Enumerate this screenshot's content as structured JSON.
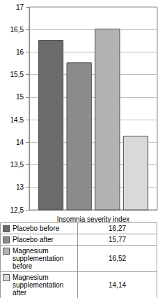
{
  "chart_data": {
    "type": "bar",
    "categories": [
      "Insomnia severity index"
    ],
    "series": [
      {
        "name": "Placebo before",
        "color": "#6b6b6b",
        "values": [
          16.27
        ],
        "value_labels": [
          "16,27"
        ]
      },
      {
        "name": "Placebo after",
        "color": "#8c8c8c",
        "values": [
          15.77
        ],
        "value_labels": [
          "15,77"
        ]
      },
      {
        "name": "Magnesium supplementation before",
        "color": "#b2b2b2",
        "values": [
          16.52
        ],
        "value_labels": [
          "16,52"
        ]
      },
      {
        "name": "Magnesium supplementation after",
        "color": "#d9d9d9",
        "values": [
          14.14
        ],
        "value_labels": [
          "14,14"
        ]
      }
    ],
    "ylim": [
      12.5,
      17
    ],
    "yticks": [
      {
        "value": 12.5,
        "label": "12,5"
      },
      13,
      {
        "value": 13.5,
        "label": "13,5"
      },
      14,
      {
        "value": 14.5,
        "label": "14,5"
      },
      15,
      {
        "value": 15.5,
        "label": "15,5"
      },
      16,
      {
        "value": 16.5,
        "label": "16,5"
      },
      17
    ],
    "grid": true
  }
}
